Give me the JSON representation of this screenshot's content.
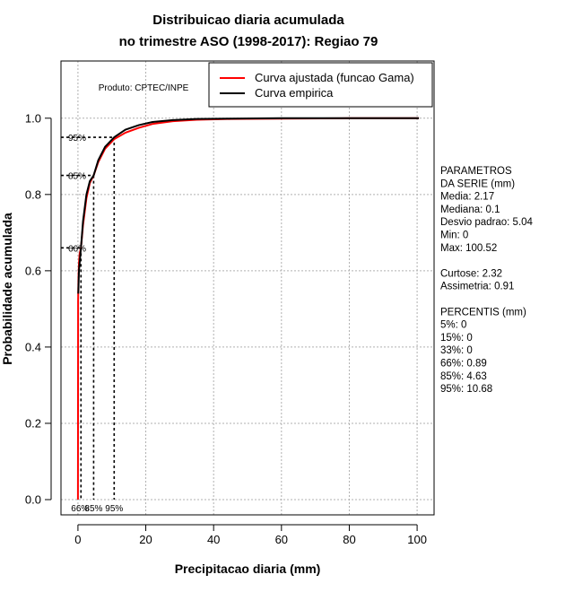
{
  "chart_data": {
    "type": "line",
    "title": [
      "Distribuicao diaria acumulada",
      "no trimestre ASO (1998-2017): Regiao 79"
    ],
    "xlabel": "Precipitacao diaria (mm)",
    "ylabel": "Probabilidade acumulada",
    "xlim": [
      -5,
      105
    ],
    "ylim": [
      -0.04,
      1.15
    ],
    "xticks": [
      0,
      20,
      40,
      60,
      80,
      100
    ],
    "yticks": [
      0.0,
      0.2,
      0.4,
      0.6,
      0.8,
      1.0
    ],
    "ytick_labels": [
      "0.0",
      "0.2",
      "0.4",
      "0.6",
      "0.8",
      "1.0"
    ],
    "grid": true,
    "product_label": "Produto: CPTEC/INPE",
    "legend": {
      "placement": "top-right",
      "entries": [
        {
          "label": "Curva ajustada (funcao Gama)",
          "color": "#ff0000"
        },
        {
          "label": "Curva empirica",
          "color": "#000000"
        }
      ]
    },
    "series": [
      {
        "name": "Curva ajustada (funcao Gama)",
        "color": "#ff0000",
        "x": [
          0,
          0.05,
          0.15,
          0.3,
          0.5,
          0.89,
          1.5,
          2.5,
          3.5,
          4.63,
          6,
          8,
          10.68,
          14,
          18,
          22,
          28,
          35,
          45,
          60,
          80,
          100.52
        ],
        "y": [
          0.0,
          0.52,
          0.58,
          0.62,
          0.645,
          0.66,
          0.72,
          0.79,
          0.83,
          0.85,
          0.885,
          0.92,
          0.945,
          0.962,
          0.975,
          0.985,
          0.992,
          0.996,
          0.998,
          0.999,
          1.0,
          1.0
        ]
      },
      {
        "name": "Curva empirica",
        "color": "#000000",
        "x": [
          0.1,
          0.3,
          0.89,
          1.5,
          2.5,
          3.5,
          4.63,
          6,
          8,
          10.68,
          14,
          18,
          22,
          28,
          35,
          45,
          60,
          80,
          100.52
        ],
        "y": [
          0.54,
          0.6,
          0.66,
          0.73,
          0.8,
          0.835,
          0.85,
          0.89,
          0.925,
          0.95,
          0.97,
          0.982,
          0.99,
          0.995,
          0.998,
          0.999,
          1.0,
          1.0,
          1.0
        ]
      }
    ],
    "percentile_markers": [
      {
        "label": "66%",
        "x": 0.89,
        "p": 0.66
      },
      {
        "label": "85%",
        "x": 4.63,
        "p": 0.85
      },
      {
        "label": "95%",
        "x": 10.68,
        "p": 0.95
      }
    ]
  },
  "side_panel": {
    "lines": [
      "PARAMETROS",
      "DA SERIE (mm)",
      "  Media: 2.17",
      "  Mediana: 0.1",
      "  Desvio padrao: 5.04",
      "  Min: 0",
      "  Max: 100.52",
      "",
      "Curtose: 2.32",
      "Assimetria: 0.91",
      "",
      "PERCENTIS (mm)",
      "  5%: 0",
      "  15%: 0",
      "  33%: 0",
      "  66%: 0.89",
      "  85%: 4.63",
      "  95%: 10.68"
    ]
  }
}
